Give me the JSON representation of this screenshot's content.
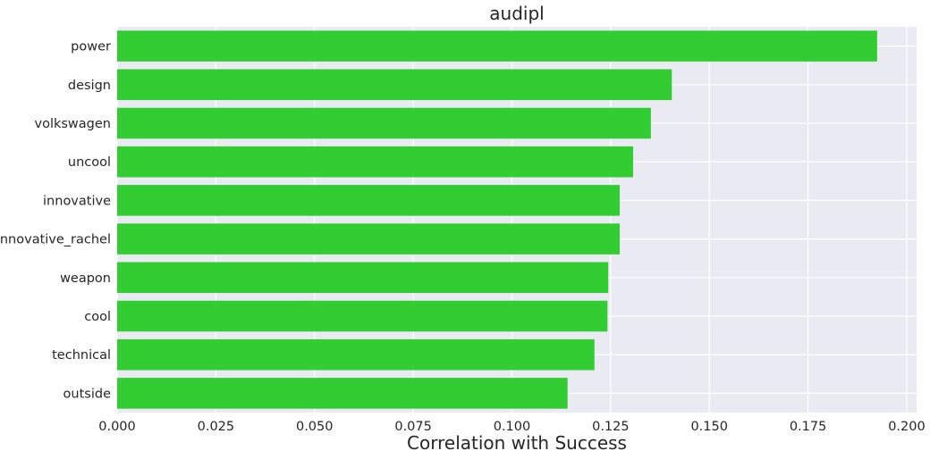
{
  "chart_data": {
    "type": "bar",
    "orientation": "horizontal",
    "title": "audipl",
    "xlabel": "Correlation with Success",
    "ylabel": "",
    "categories": [
      "power",
      "design",
      "volkswagen",
      "uncool",
      "innovative",
      "innovative_rachel",
      "weapon",
      "cool",
      "technical",
      "outside"
    ],
    "values": [
      0.1925,
      0.1405,
      0.1352,
      0.1307,
      0.1273,
      0.1273,
      0.1244,
      0.1242,
      0.1209,
      0.1141
    ],
    "xlim": [
      0.0,
      0.2025
    ],
    "xticks": [
      0.0,
      0.025,
      0.05,
      0.075,
      0.1,
      0.125,
      0.15,
      0.175,
      0.2
    ],
    "xtick_labels": [
      "0.000",
      "0.025",
      "0.050",
      "0.075",
      "0.100",
      "0.125",
      "0.150",
      "0.175",
      "0.200"
    ],
    "grid": true,
    "bar_color": "#32cd32",
    "background_color": "#eaeaf2",
    "grid_color": "#ffffff"
  }
}
